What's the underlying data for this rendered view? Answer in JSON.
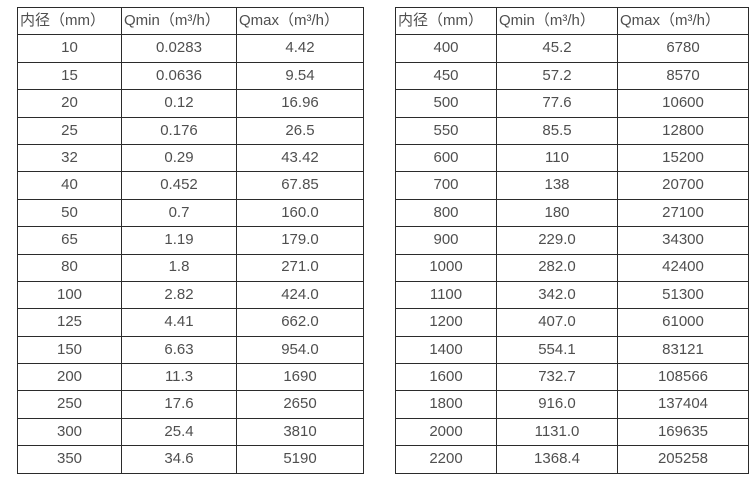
{
  "page": {
    "background_color": "#ffffff",
    "text_color": "#4f4f4f",
    "border_color": "#2b2b2b"
  },
  "tables": [
    {
      "name": "small-diameter-flow-table",
      "headers": [
        "内径（mm）",
        "Qmin（m³/h）",
        "Qmax（m³/h）"
      ],
      "rows": [
        [
          "10",
          "0.0283",
          "4.42"
        ],
        [
          "15",
          "0.0636",
          "9.54"
        ],
        [
          "20",
          "0.12",
          "16.96"
        ],
        [
          "25",
          "0.176",
          "26.5"
        ],
        [
          "32",
          "0.29",
          "43.42"
        ],
        [
          "40",
          "0.452",
          "67.85"
        ],
        [
          "50",
          "0.7",
          "160.0"
        ],
        [
          "65",
          "1.19",
          "179.0"
        ],
        [
          "80",
          "1.8",
          "271.0"
        ],
        [
          "100",
          "2.82",
          "424.0"
        ],
        [
          "125",
          "4.41",
          "662.0"
        ],
        [
          "150",
          "6.63",
          "954.0"
        ],
        [
          "200",
          "11.3",
          "1690"
        ],
        [
          "250",
          "17.6",
          "2650"
        ],
        [
          "300",
          "25.4",
          "3810"
        ],
        [
          "350",
          "34.6",
          "5190"
        ]
      ]
    },
    {
      "name": "large-diameter-flow-table",
      "headers": [
        "内径（mm）",
        "Qmin（m³/h）",
        "Qmax（m³/h）"
      ],
      "rows": [
        [
          "400",
          "45.2",
          "6780"
        ],
        [
          "450",
          "57.2",
          "8570"
        ],
        [
          "500",
          "77.6",
          "10600"
        ],
        [
          "550",
          "85.5",
          "12800"
        ],
        [
          "600",
          "110",
          "15200"
        ],
        [
          "700",
          "138",
          "20700"
        ],
        [
          "800",
          "180",
          "27100"
        ],
        [
          "900",
          "229.0",
          "34300"
        ],
        [
          "1000",
          "282.0",
          "42400"
        ],
        [
          "1100",
          "342.0",
          "51300"
        ],
        [
          "1200",
          "407.0",
          "61000"
        ],
        [
          "1400",
          "554.1",
          "83121"
        ],
        [
          "1600",
          "732.7",
          "108566"
        ],
        [
          "1800",
          "916.0",
          "137404"
        ],
        [
          "2000",
          "1131.0",
          "169635"
        ],
        [
          "2200",
          "1368.4",
          "205258"
        ]
      ]
    }
  ]
}
